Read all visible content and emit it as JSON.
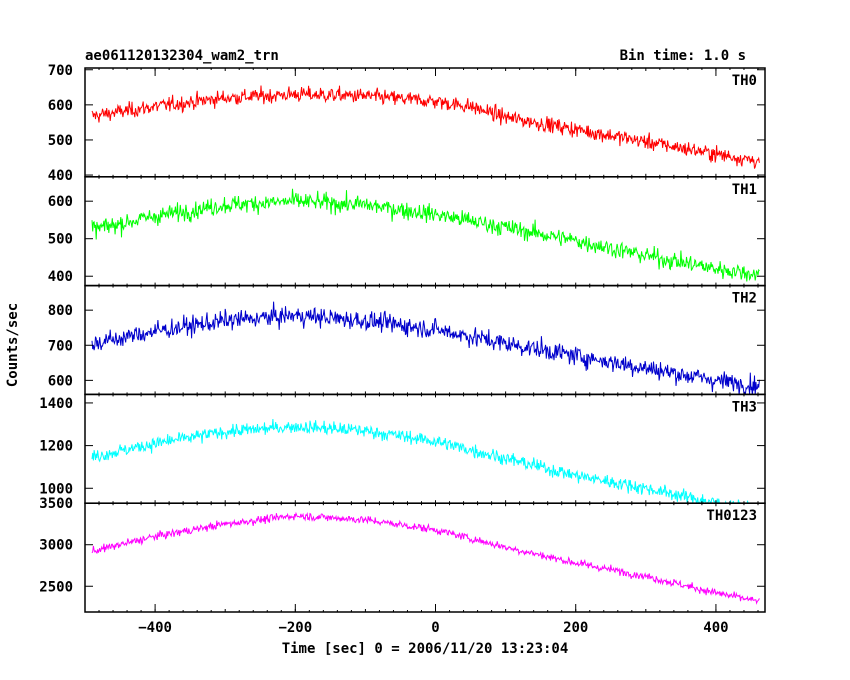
{
  "chart_data": {
    "type": "line",
    "title": "ae061120132304_wam2_trn",
    "subtitle": "Bin time: 1.0 s",
    "xlabel": "Time [sec] 0 = 2006/11/20 13:23:04",
    "ylabel": "Counts/sec",
    "xlim": [
      -500,
      470
    ],
    "x_ticks": [
      -400,
      -200,
      0,
      200,
      400
    ],
    "x_tick_labels": [
      "−400",
      "−200",
      "0",
      "200",
      "400"
    ],
    "bin_seconds": 1.0,
    "panels": [
      {
        "name": "TH0",
        "color": "#ff0000",
        "ylim": [
          395,
          705
        ],
        "y_ticks": [
          400,
          500,
          600,
          700
        ],
        "noise": 28,
        "trend_x": [
          -500,
          -400,
          -300,
          -200,
          -100,
          0,
          50,
          100,
          200,
          300,
          400,
          460
        ],
        "trend_y": [
          565,
          595,
          620,
          630,
          625,
          610,
          595,
          565,
          530,
          495,
          460,
          440
        ]
      },
      {
        "name": "TH1",
        "color": "#00ff00",
        "ylim": [
          375,
          665
        ],
        "y_ticks": [
          400,
          500,
          600
        ],
        "noise": 30,
        "trend_x": [
          -500,
          -400,
          -300,
          -200,
          -100,
          0,
          100,
          200,
          300,
          400,
          460
        ],
        "trend_y": [
          520,
          560,
          590,
          600,
          590,
          565,
          530,
          495,
          455,
          420,
          405
        ]
      },
      {
        "name": "TH2",
        "color": "#0000cc",
        "ylim": [
          560,
          870
        ],
        "y_ticks": [
          600,
          700,
          800
        ],
        "noise": 35,
        "trend_x": [
          -500,
          -400,
          -300,
          -200,
          -100,
          0,
          100,
          200,
          300,
          400,
          460
        ],
        "trend_y": [
          700,
          740,
          770,
          785,
          770,
          745,
          705,
          670,
          635,
          600,
          585
        ]
      },
      {
        "name": "TH3",
        "color": "#00ffff",
        "ylim": [
          930,
          1440
        ],
        "y_ticks": [
          1000,
          1200,
          1400
        ],
        "noise": 40,
        "trend_x": [
          -500,
          -400,
          -300,
          -200,
          -100,
          0,
          100,
          200,
          300,
          400,
          460
        ],
        "trend_y": [
          1140,
          1210,
          1265,
          1290,
          1270,
          1220,
          1140,
          1060,
          1000,
          930,
          905
        ]
      },
      {
        "name": "TH0123",
        "color": "#ff00ff",
        "ylim": [
          2190,
          3500
        ],
        "y_ticks": [
          2500,
          3000,
          3500
        ],
        "noise": 60,
        "trend_x": [
          -500,
          -400,
          -300,
          -200,
          -100,
          0,
          100,
          200,
          300,
          400,
          460
        ],
        "trend_y": [
          2900,
          3100,
          3250,
          3350,
          3300,
          3180,
          2970,
          2780,
          2620,
          2420,
          2320
        ]
      }
    ]
  }
}
